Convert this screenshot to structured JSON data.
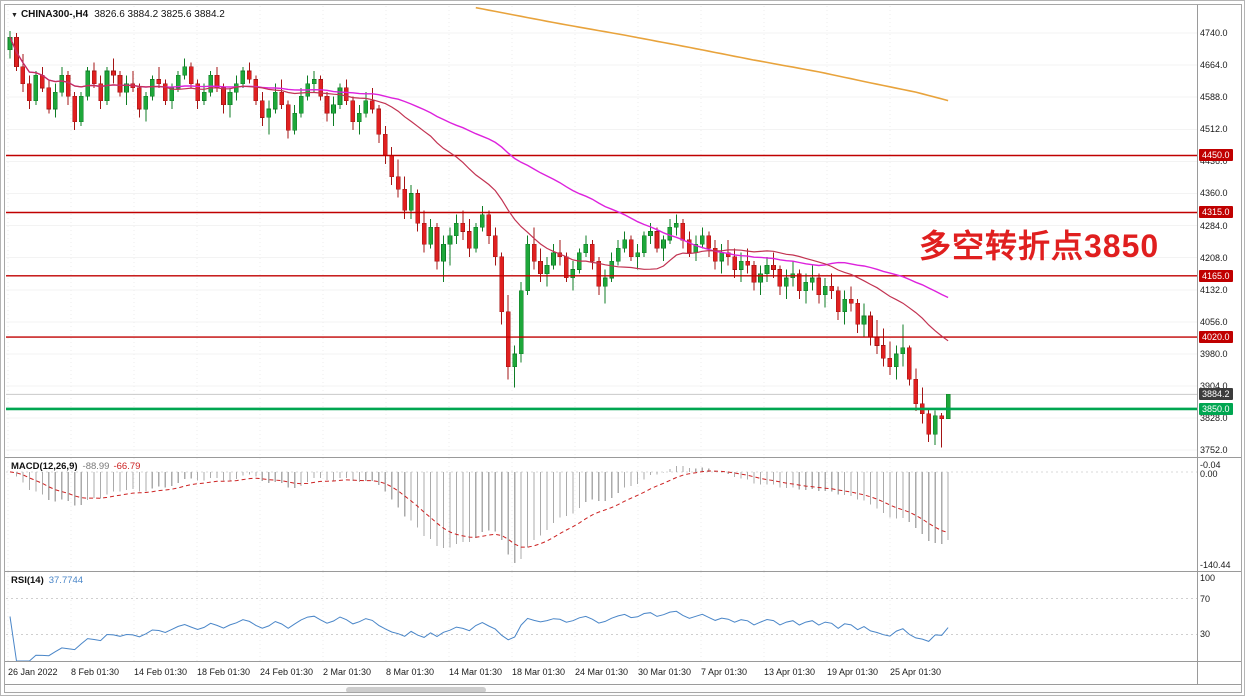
{
  "window": {
    "title_marker": "▼",
    "symbol_period": "CHINA300-,H4",
    "ohlc_text": "3826.6 3884.2 3825.6 3884.2"
  },
  "annotation": {
    "text": "多空转折点3850",
    "color": "#e01f1f"
  },
  "price_axis": {
    "labels": [
      {
        "text": "4740.0",
        "price": 4740.0
      },
      {
        "text": "4664.0",
        "price": 4664.0
      },
      {
        "text": "4588.0",
        "price": 4588.0
      },
      {
        "text": "4512.0",
        "price": 4512.0
      },
      {
        "text": "4436.0",
        "price": 4436.0
      },
      {
        "text": "4360.0",
        "price": 4360.0
      },
      {
        "text": "4284.0",
        "price": 4284.0
      },
      {
        "text": "4208.0",
        "price": 4208.0
      },
      {
        "text": "4132.0",
        "price": 4132.0
      },
      {
        "text": "4056.0",
        "price": 4056.0
      },
      {
        "text": "3980.0",
        "price": 3980.0
      },
      {
        "text": "3904.0",
        "price": 3904.0
      },
      {
        "text": "3828.0",
        "price": 3828.0
      },
      {
        "text": "3752.0",
        "price": 3752.0
      }
    ],
    "tags": [
      {
        "text": "4450.0",
        "price": 4450.0,
        "bg": "#c00000"
      },
      {
        "text": "4315.0",
        "price": 4315.0,
        "bg": "#c00000"
      },
      {
        "text": "4165.0",
        "price": 4165.0,
        "bg": "#c00000"
      },
      {
        "text": "4020.0",
        "price": 4020.0,
        "bg": "#c00000"
      },
      {
        "text": "3884.2",
        "price": 3884.2,
        "bg": "#3c3c3c"
      },
      {
        "text": "3850.0",
        "price": 3850.0,
        "bg": "#00a651"
      }
    ]
  },
  "time_axis": {
    "labels": [
      "26 Jan 2022",
      "8 Feb 01:30",
      "14 Feb 01:30",
      "18 Feb 01:30",
      "24 Feb 01:30",
      "2 Mar 01:30",
      "8 Mar 01:30",
      "14 Mar 01:30",
      "18 Mar 01:30",
      "24 Mar 01:30",
      "30 Mar 01:30",
      "7 Apr 01:30",
      "13 Apr 01:30",
      "19 Apr 01:30",
      "25 Apr 01:30"
    ]
  },
  "macd_panel": {
    "label": "MACD(12,26,9)",
    "value_main": "-88.99",
    "value_signal": "-66.79",
    "axis_labels": [
      {
        "text": "-0.04",
        "frac": 0.02
      },
      {
        "text": "0.00",
        "frac": 0.1
      },
      {
        "text": "-140.44",
        "frac": 0.9
      }
    ]
  },
  "rsi_panel": {
    "label": "RSI(14)",
    "value": "37.7744",
    "axis_labels": [
      {
        "text": "100",
        "value": 100
      },
      {
        "text": "70",
        "value": 70
      },
      {
        "text": "30",
        "value": 30
      }
    ]
  },
  "chart_data": {
    "type": "candlestick",
    "symbol": "CHINA300-",
    "timeframe": "H4",
    "ylim": [
      3736,
      4804
    ],
    "grid_prices": [
      4740,
      4664,
      4588,
      4512,
      4436,
      4360,
      4284,
      4208,
      4132,
      4056,
      3980,
      3904,
      3828,
      3752
    ],
    "levels": [
      {
        "price": 3884.2,
        "color": "#c9c9c9",
        "width": 1,
        "behind": true
      },
      {
        "price": 4450.0,
        "color": "#c00000",
        "width": 1.4,
        "behind": false
      },
      {
        "price": 4315.0,
        "color": "#c00000",
        "width": 1.4,
        "behind": false
      },
      {
        "price": 4165.0,
        "color": "#c00000",
        "width": 1.4,
        "behind": false
      },
      {
        "price": 4020.0,
        "color": "#c00000",
        "width": 1.4,
        "behind": false
      },
      {
        "price": 3850.0,
        "color": "#00a651",
        "width": 2.6,
        "behind": false
      }
    ],
    "candles": [
      [
        4700,
        4745,
        4680,
        4730
      ],
      [
        4730,
        4740,
        4650,
        4660
      ],
      [
        4660,
        4690,
        4600,
        4620
      ],
      [
        4620,
        4640,
        4560,
        4580
      ],
      [
        4580,
        4650,
        4570,
        4640
      ],
      [
        4640,
        4660,
        4600,
        4610
      ],
      [
        4610,
        4630,
        4550,
        4560
      ],
      [
        4560,
        4620,
        4540,
        4600
      ],
      [
        4600,
        4660,
        4590,
        4640
      ],
      [
        4640,
        4650,
        4570,
        4590
      ],
      [
        4590,
        4600,
        4510,
        4530
      ],
      [
        4530,
        4600,
        4520,
        4590
      ],
      [
        4590,
        4660,
        4580,
        4650
      ],
      [
        4650,
        4670,
        4610,
        4620
      ],
      [
        4620,
        4640,
        4560,
        4580
      ],
      [
        4580,
        4660,
        4570,
        4650
      ],
      [
        4650,
        4680,
        4620,
        4640
      ],
      [
        4640,
        4650,
        4590,
        4600
      ],
      [
        4600,
        4640,
        4570,
        4620
      ],
      [
        4620,
        4650,
        4600,
        4610
      ],
      [
        4610,
        4620,
        4540,
        4560
      ],
      [
        4560,
        4600,
        4530,
        4590
      ],
      [
        4590,
        4640,
        4580,
        4630
      ],
      [
        4630,
        4660,
        4610,
        4620
      ],
      [
        4620,
        4630,
        4570,
        4580
      ],
      [
        4580,
        4620,
        4560,
        4610
      ],
      [
        4610,
        4650,
        4600,
        4640
      ],
      [
        4640,
        4680,
        4630,
        4660
      ],
      [
        4660,
        4670,
        4610,
        4620
      ],
      [
        4620,
        4630,
        4560,
        4580
      ],
      [
        4580,
        4620,
        4570,
        4600
      ],
      [
        4600,
        4650,
        4590,
        4640
      ],
      [
        4640,
        4660,
        4600,
        4610
      ],
      [
        4610,
        4620,
        4550,
        4570
      ],
      [
        4570,
        4610,
        4540,
        4600
      ],
      [
        4600,
        4640,
        4580,
        4620
      ],
      [
        4620,
        4660,
        4610,
        4650
      ],
      [
        4650,
        4670,
        4620,
        4630
      ],
      [
        4630,
        4640,
        4570,
        4580
      ],
      [
        4580,
        4600,
        4520,
        4540
      ],
      [
        4540,
        4580,
        4500,
        4560
      ],
      [
        4560,
        4620,
        4550,
        4600
      ],
      [
        4600,
        4630,
        4560,
        4570
      ],
      [
        4570,
        4580,
        4490,
        4510
      ],
      [
        4510,
        4570,
        4500,
        4550
      ],
      [
        4550,
        4610,
        4540,
        4590
      ],
      [
        4590,
        4640,
        4580,
        4620
      ],
      [
        4620,
        4650,
        4600,
        4630
      ],
      [
        4630,
        4640,
        4580,
        4590
      ],
      [
        4590,
        4600,
        4530,
        4550
      ],
      [
        4550,
        4590,
        4520,
        4570
      ],
      [
        4570,
        4620,
        4560,
        4610
      ],
      [
        4610,
        4630,
        4570,
        4580
      ],
      [
        4580,
        4590,
        4510,
        4530
      ],
      [
        4530,
        4570,
        4500,
        4550
      ],
      [
        4550,
        4600,
        4540,
        4580
      ],
      [
        4580,
        4610,
        4550,
        4560
      ],
      [
        4560,
        4570,
        4480,
        4500
      ],
      [
        4500,
        4520,
        4430,
        4450
      ],
      [
        4450,
        4470,
        4380,
        4400
      ],
      [
        4400,
        4440,
        4350,
        4370
      ],
      [
        4370,
        4400,
        4300,
        4320
      ],
      [
        4320,
        4380,
        4300,
        4360
      ],
      [
        4360,
        4370,
        4270,
        4290
      ],
      [
        4290,
        4320,
        4220,
        4240
      ],
      [
        4240,
        4300,
        4230,
        4280
      ],
      [
        4280,
        4290,
        4180,
        4200
      ],
      [
        4200,
        4260,
        4150,
        4240
      ],
      [
        4240,
        4280,
        4190,
        4260
      ],
      [
        4260,
        4310,
        4240,
        4290
      ],
      [
        4290,
        4320,
        4250,
        4270
      ],
      [
        4270,
        4300,
        4210,
        4230
      ],
      [
        4230,
        4290,
        4220,
        4280
      ],
      [
        4280,
        4330,
        4270,
        4310
      ],
      [
        4310,
        4320,
        4240,
        4260
      ],
      [
        4260,
        4280,
        4190,
        4210
      ],
      [
        4210,
        4220,
        4050,
        4080
      ],
      [
        4080,
        4120,
        3920,
        3950
      ],
      [
        3950,
        4000,
        3900,
        3980
      ],
      [
        3980,
        4150,
        3960,
        4130
      ],
      [
        4130,
        4260,
        4120,
        4240
      ],
      [
        4240,
        4280,
        4180,
        4200
      ],
      [
        4200,
        4230,
        4150,
        4170
      ],
      [
        4170,
        4210,
        4140,
        4190
      ],
      [
        4190,
        4240,
        4180,
        4220
      ],
      [
        4220,
        4250,
        4190,
        4210
      ],
      [
        4210,
        4220,
        4150,
        4160
      ],
      [
        4160,
        4200,
        4130,
        4180
      ],
      [
        4180,
        4230,
        4170,
        4220
      ],
      [
        4220,
        4260,
        4210,
        4240
      ],
      [
        4240,
        4250,
        4180,
        4200
      ],
      [
        4200,
        4210,
        4120,
        4140
      ],
      [
        4140,
        4180,
        4100,
        4160
      ],
      [
        4160,
        4220,
        4150,
        4200
      ],
      [
        4200,
        4250,
        4190,
        4230
      ],
      [
        4230,
        4270,
        4220,
        4250
      ],
      [
        4250,
        4260,
        4200,
        4210
      ],
      [
        4210,
        4240,
        4180,
        4220
      ],
      [
        4220,
        4270,
        4210,
        4260
      ],
      [
        4260,
        4290,
        4240,
        4270
      ],
      [
        4270,
        4280,
        4220,
        4230
      ],
      [
        4230,
        4260,
        4200,
        4250
      ],
      [
        4250,
        4300,
        4240,
        4280
      ],
      [
        4280,
        4310,
        4260,
        4290
      ],
      [
        4290,
        4300,
        4230,
        4250
      ],
      [
        4250,
        4270,
        4210,
        4220
      ],
      [
        4220,
        4260,
        4200,
        4240
      ],
      [
        4240,
        4280,
        4230,
        4260
      ],
      [
        4260,
        4270,
        4210,
        4230
      ],
      [
        4230,
        4250,
        4180,
        4200
      ],
      [
        4200,
        4240,
        4170,
        4220
      ],
      [
        4220,
        4250,
        4190,
        4210
      ],
      [
        4210,
        4230,
        4160,
        4180
      ],
      [
        4180,
        4220,
        4150,
        4200
      ],
      [
        4200,
        4230,
        4170,
        4190
      ],
      [
        4190,
        4200,
        4130,
        4150
      ],
      [
        4150,
        4190,
        4120,
        4170
      ],
      [
        4170,
        4210,
        4150,
        4190
      ],
      [
        4190,
        4220,
        4160,
        4180
      ],
      [
        4180,
        4190,
        4120,
        4140
      ],
      [
        4140,
        4180,
        4110,
        4160
      ],
      [
        4160,
        4200,
        4140,
        4170
      ],
      [
        4170,
        4180,
        4110,
        4130
      ],
      [
        4130,
        4170,
        4100,
        4150
      ],
      [
        4150,
        4190,
        4130,
        4160
      ],
      [
        4160,
        4170,
        4100,
        4120
      ],
      [
        4120,
        4160,
        4090,
        4140
      ],
      [
        4140,
        4170,
        4110,
        4130
      ],
      [
        4130,
        4140,
        4060,
        4080
      ],
      [
        4080,
        4130,
        4050,
        4110
      ],
      [
        4110,
        4140,
        4080,
        4100
      ],
      [
        4100,
        4110,
        4030,
        4050
      ],
      [
        4050,
        4100,
        4020,
        4070
      ],
      [
        4070,
        4080,
        4000,
        4020
      ],
      [
        4020,
        4060,
        3980,
        4000
      ],
      [
        4000,
        4040,
        3950,
        3970
      ],
      [
        3970,
        4010,
        3930,
        3950
      ],
      [
        3950,
        4000,
        3920,
        3980
      ],
      [
        3980,
        4050,
        3950,
        3995
      ],
      [
        3995,
        4000,
        3905,
        3920
      ],
      [
        3920,
        3945,
        3845,
        3862
      ],
      [
        3862,
        3900,
        3815,
        3838
      ],
      [
        3838,
        3852,
        3772,
        3790
      ],
      [
        3790,
        3846,
        3764,
        3834
      ],
      [
        3834,
        3840,
        3758,
        3826.6
      ],
      [
        3826.6,
        3884.2,
        3825.6,
        3884.2
      ]
    ],
    "ma_fast_period": 25,
    "ma_slow_period": 50,
    "long_ma_points": [
      [
        72,
        4800
      ],
      [
        85,
        4762
      ],
      [
        95,
        4735
      ],
      [
        105,
        4706
      ],
      [
        115,
        4676
      ],
      [
        125,
        4648
      ],
      [
        133,
        4622
      ],
      [
        140,
        4600
      ],
      [
        145,
        4580
      ]
    ],
    "macd": {
      "fast": 12,
      "slow": 26,
      "signal": 9
    },
    "rsi": {
      "period": 14,
      "levels": [
        70,
        30
      ]
    },
    "colors": {
      "up": "#1ea73a",
      "up_border": "#0f7d26",
      "down": "#e02020",
      "down_border": "#a31414",
      "ma_fast": "#c23352",
      "ma_slow": "#dd22dd",
      "ma_long": "#e8a33c",
      "level_red": "#c00000",
      "level_green": "#00a651",
      "macd_hist": "#ababab",
      "macd_signal": "#cc2222",
      "rsi_line": "#4a86c8",
      "grid": "#f3f3f3",
      "vgrid": "#ededed"
    }
  }
}
